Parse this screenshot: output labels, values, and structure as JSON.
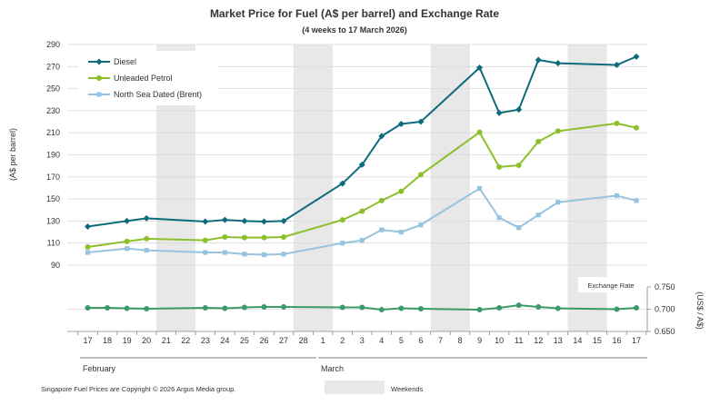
{
  "chart_data": {
    "type": "line",
    "title": "Market Price for Fuel (A$ per barrel) and Exchange Rate",
    "subtitle": "(4 weeks to 17 March 2026)",
    "ylabel": "(A$ per barrel)",
    "y2label": "(US$ / A$)",
    "ylim": [
      90,
      290
    ],
    "yticks": [
      "290",
      "270",
      "250",
      "230",
      "210",
      "190",
      "170",
      "150",
      "130",
      "110",
      "90"
    ],
    "y2lim": [
      0.65,
      0.75
    ],
    "y2ticks": [
      "0.750",
      "0.700",
      "0.650"
    ],
    "x": [
      "17",
      "18",
      "19",
      "20",
      "21",
      "22",
      "23",
      "24",
      "25",
      "26",
      "27",
      "28",
      "1",
      "2",
      "3",
      "4",
      "5",
      "6",
      "7",
      "8",
      "9",
      "10",
      "11",
      "12",
      "13",
      "14",
      "15",
      "16",
      "17"
    ],
    "months": [
      "February",
      "March"
    ],
    "weekends": [
      [
        4,
        5
      ],
      [
        11,
        12
      ],
      [
        18,
        19
      ],
      [
        25,
        26
      ]
    ],
    "series": [
      {
        "name": "Diesel",
        "color": "#0d6b7d",
        "marker": "diamond",
        "values": [
          125,
          null,
          130,
          132.5,
          null,
          null,
          129.5,
          131,
          130,
          129.5,
          130,
          null,
          null,
          164,
          181,
          207,
          218,
          220,
          null,
          null,
          269,
          228,
          231,
          276,
          273,
          null,
          null,
          271.5,
          279
        ]
      },
      {
        "name": "Unleaded Petrol",
        "color": "#8cbf2a",
        "marker": "circle",
        "values": [
          106.5,
          null,
          111.5,
          114,
          null,
          null,
          112.5,
          115.5,
          115,
          115,
          115.5,
          null,
          null,
          131,
          139,
          148.5,
          157,
          172,
          null,
          null,
          210.5,
          179,
          180.5,
          202,
          211.5,
          null,
          null,
          218.5,
          214.5
        ]
      },
      {
        "name": "North Sea Dated (Brent)",
        "color": "#96c3e0",
        "marker": "square",
        "values": [
          101.5,
          null,
          105,
          103.5,
          null,
          null,
          101.5,
          101.5,
          100,
          99.5,
          100,
          null,
          null,
          110,
          112.5,
          122,
          120,
          126.5,
          null,
          null,
          159.5,
          133,
          124,
          135.5,
          147,
          null,
          null,
          153,
          148.5
        ]
      },
      {
        "name": "Exchange Rate",
        "color": "#3a9a68",
        "marker": "circle",
        "axis": "right",
        "values": [
          0.703,
          0.703,
          0.702,
          0.701,
          null,
          null,
          0.703,
          0.702,
          0.704,
          0.705,
          0.705,
          null,
          null,
          0.704,
          0.704,
          0.699,
          0.702,
          0.701,
          null,
          null,
          0.699,
          0.703,
          0.709,
          0.705,
          0.702,
          null,
          null,
          0.7,
          0.703
        ]
      }
    ],
    "exchange_rate_label": "Exchange  Rate",
    "weekends_label": "Weekends",
    "copyright": "Singapore  Fuel Prices are Copyright  ©  2026  Argus Media group."
  }
}
